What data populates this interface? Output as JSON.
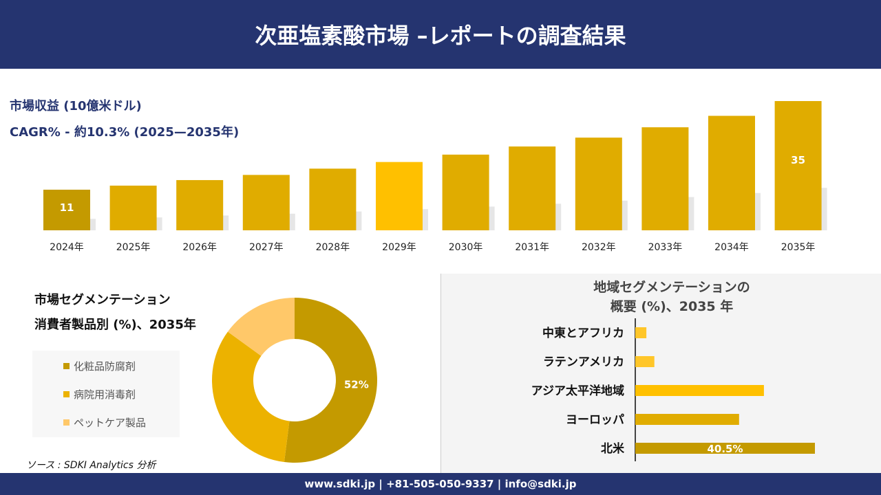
{
  "header": {
    "title": "次亜塩素酸市場 –レポートの調査結果"
  },
  "chart_data": [
    {
      "type": "bar",
      "title": "市場収益 (10億米ドル)",
      "subtitle": "CAGR% - 約10.3% (2025—2035年)",
      "categories": [
        "2024年",
        "2025年",
        "2026年",
        "2027年",
        "2028年",
        "2029年",
        "2030年",
        "2031年",
        "2032年",
        "2033年",
        "2034年",
        "2035年"
      ],
      "values": [
        11,
        12.1,
        13.6,
        15,
        16.7,
        18.5,
        20.5,
        22.7,
        25.1,
        27.9,
        31,
        35
      ],
      "data_labels": {
        "0": "11",
        "11": "35"
      },
      "colors": {
        "first": "#c49a00",
        "default": "#e0ac00",
        "highlight": "#ffc000"
      }
    },
    {
      "type": "pie",
      "title": "市場セグメンテーション",
      "subtitle": "消費者製品別 (%)、2035年",
      "labels": [
        "化粧品防腐剤",
        "病院用消毒剤",
        "ペットケア製品"
      ],
      "values": [
        52,
        33,
        15
      ],
      "data_labels": [
        "52%"
      ],
      "colors": [
        "#c49a00",
        "#ecb200",
        "#ffc869"
      ]
    },
    {
      "type": "bar",
      "orientation": "horizontal",
      "title": "地域セグメンテーションの",
      "subtitle": "概要 (%)、2035 年",
      "categories": [
        "中東とアフリカ",
        "ラテンアメリカ",
        "アジア太平洋地域",
        "ヨーロッパ",
        "北米"
      ],
      "values": [
        2.5,
        4.3,
        29,
        23.4,
        40.5
      ],
      "data_labels": {
        "4": "40.5%"
      },
      "colors": [
        "#ffc629",
        "#ffc629",
        "#ffc000",
        "#e0ac00",
        "#c49a00"
      ]
    }
  ],
  "source": "ソース : SDKI Analytics 分析",
  "footer": {
    "text": "www.sdki.jp | +81-505-050-9337 | info@sdki.jp"
  }
}
